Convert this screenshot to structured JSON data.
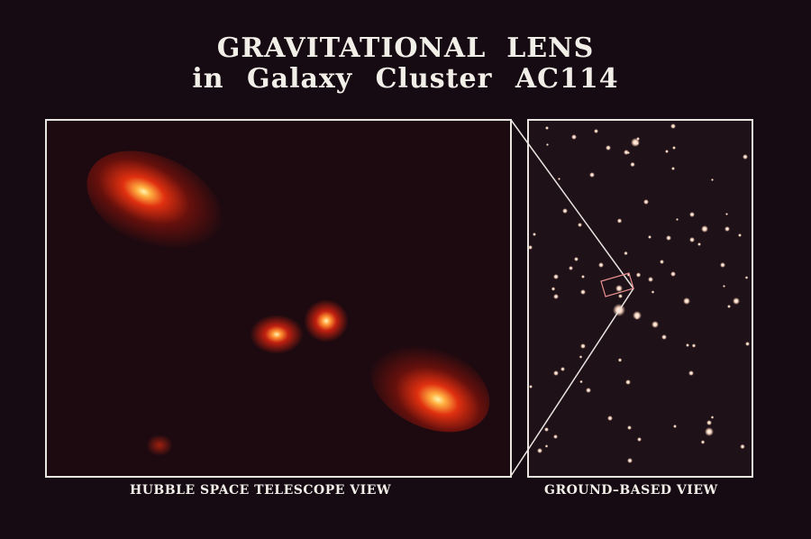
{
  "title": {
    "line1": "GRAVITATIONAL  LENS",
    "line2": "in Galaxy Cluster AC114"
  },
  "left_panel": {
    "caption": "HUBBLE SPACE TELESCOPE VIEW"
  },
  "right_panel": {
    "caption": "GROUND–BASED VIEW"
  },
  "colors": {
    "background": "#160b12",
    "frame": "#e8e4e0",
    "glow": "#ff3a10",
    "core": "#fff0a0"
  }
}
